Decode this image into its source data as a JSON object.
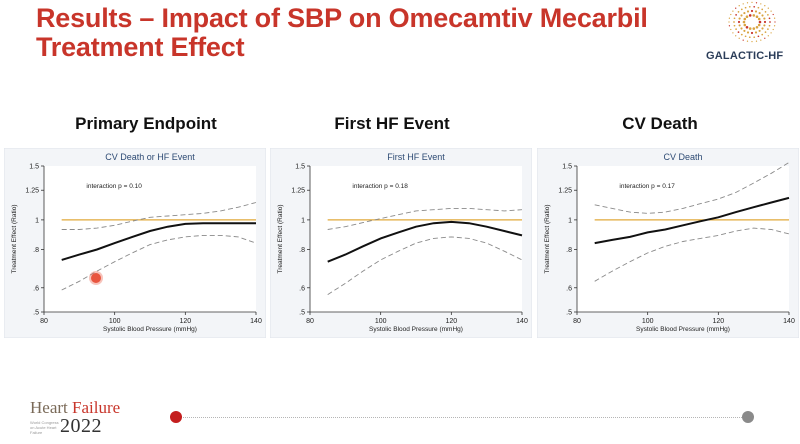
{
  "slide": {
    "title_line1": "Results – Impact of SBP on Omecamtiv Mecarbil",
    "title_line2": "Treatment Effect",
    "logo_text": "GALACTIC-HF",
    "footer": {
      "brand_word1": "Heart",
      "brand_word2": "Failure",
      "year": "2022",
      "subtitle": "World Congress on Acute Heart Failure"
    },
    "colors": {
      "title": "#c8352a",
      "reference_line": "#e0a83a",
      "timeline_active": "#c41e1e",
      "timeline_end": "#8a8a8a"
    }
  },
  "panels": [
    {
      "heading": "Primary Endpoint"
    },
    {
      "heading": "First HF Event"
    },
    {
      "heading": "CV Death"
    }
  ],
  "chart_data": [
    {
      "type": "line",
      "title": "CV Death or HF Event",
      "xlabel": "Systolic Blood Pressure (mmHg)",
      "ylabel": "Treatment Effect (Ratio)",
      "xlim": [
        80,
        140
      ],
      "xticks": [
        80,
        100,
        120,
        140
      ],
      "ylim": [
        0.5,
        1.5
      ],
      "yticks": [
        0.5,
        0.6,
        0.8,
        1,
        1.25,
        1.5
      ],
      "ytick_labels": [
        ".5",
        ".6",
        ".8",
        "1",
        "1.25",
        "1.5"
      ],
      "log_y": true,
      "annotation": "interaction p = 0.10",
      "reference_y": 1,
      "series": [
        {
          "role": "estimate",
          "x": [
            85,
            90,
            95,
            100,
            105,
            110,
            115,
            120,
            125,
            130,
            135,
            140
          ],
          "values": [
            0.74,
            0.77,
            0.8,
            0.84,
            0.88,
            0.92,
            0.95,
            0.97,
            0.975,
            0.975,
            0.975,
            0.975
          ]
        },
        {
          "role": "upper_ci",
          "x": [
            85,
            90,
            95,
            100,
            105,
            110,
            115,
            120,
            125,
            130,
            135,
            140
          ],
          "values": [
            0.93,
            0.93,
            0.94,
            0.96,
            0.99,
            1.02,
            1.03,
            1.04,
            1.05,
            1.07,
            1.1,
            1.14
          ]
        },
        {
          "role": "lower_ci",
          "x": [
            85,
            90,
            95,
            100,
            105,
            110,
            115,
            120,
            125,
            130,
            135,
            140
          ],
          "values": [
            0.59,
            0.63,
            0.68,
            0.73,
            0.78,
            0.83,
            0.86,
            0.88,
            0.89,
            0.89,
            0.88,
            0.84
          ]
        }
      ]
    },
    {
      "type": "line",
      "title": "First HF Event",
      "xlabel": "Systolic Blood Pressure (mmHg)",
      "ylabel": "Treatment Effect (Ratio)",
      "xlim": [
        80,
        140
      ],
      "xticks": [
        80,
        100,
        120,
        140
      ],
      "ylim": [
        0.5,
        1.5
      ],
      "yticks": [
        0.5,
        0.6,
        0.8,
        1,
        1.25,
        1.5
      ],
      "ytick_labels": [
        ".5",
        ".6",
        ".8",
        "1",
        "1.25",
        "1.5"
      ],
      "log_y": true,
      "annotation": "interaction p = 0.18",
      "reference_y": 1,
      "series": [
        {
          "role": "estimate",
          "x": [
            85,
            90,
            95,
            100,
            105,
            110,
            115,
            120,
            125,
            130,
            135,
            140
          ],
          "values": [
            0.73,
            0.77,
            0.82,
            0.87,
            0.91,
            0.95,
            0.975,
            0.985,
            0.975,
            0.95,
            0.92,
            0.89
          ]
        },
        {
          "role": "upper_ci",
          "x": [
            85,
            90,
            95,
            100,
            105,
            110,
            115,
            120,
            125,
            130,
            135,
            140
          ],
          "values": [
            0.93,
            0.95,
            0.98,
            1.01,
            1.04,
            1.07,
            1.08,
            1.09,
            1.09,
            1.08,
            1.07,
            1.08
          ]
        },
        {
          "role": "lower_ci",
          "x": [
            85,
            90,
            95,
            100,
            105,
            110,
            115,
            120,
            125,
            130,
            135,
            140
          ],
          "values": [
            0.57,
            0.62,
            0.68,
            0.74,
            0.79,
            0.84,
            0.87,
            0.88,
            0.87,
            0.84,
            0.79,
            0.74
          ]
        }
      ]
    },
    {
      "type": "line",
      "title": "CV Death",
      "xlabel": "Systolic Blood Pressure (mmHg)",
      "ylabel": "Treatment Effect (Ratio)",
      "xlim": [
        80,
        140
      ],
      "xticks": [
        80,
        100,
        120,
        140
      ],
      "ylim": [
        0.5,
        1.5
      ],
      "yticks": [
        0.5,
        0.6,
        0.8,
        1,
        1.25,
        1.5
      ],
      "ytick_labels": [
        ".5",
        ".6",
        ".8",
        "1",
        "1.25",
        "1.5"
      ],
      "log_y": true,
      "annotation": "interaction p = 0.17",
      "reference_y": 1,
      "series": [
        {
          "role": "estimate",
          "x": [
            85,
            90,
            95,
            100,
            105,
            110,
            115,
            120,
            125,
            130,
            135,
            140
          ],
          "values": [
            0.84,
            0.86,
            0.88,
            0.91,
            0.93,
            0.96,
            0.99,
            1.02,
            1.06,
            1.1,
            1.14,
            1.18
          ]
        },
        {
          "role": "upper_ci",
          "x": [
            85,
            90,
            95,
            100,
            105,
            110,
            115,
            120,
            125,
            130,
            135,
            140
          ],
          "values": [
            1.12,
            1.09,
            1.06,
            1.05,
            1.06,
            1.09,
            1.13,
            1.17,
            1.23,
            1.32,
            1.42,
            1.54
          ]
        },
        {
          "role": "lower_ci",
          "x": [
            85,
            90,
            95,
            100,
            105,
            110,
            115,
            120,
            125,
            130,
            135,
            140
          ],
          "values": [
            0.63,
            0.68,
            0.73,
            0.78,
            0.82,
            0.85,
            0.87,
            0.89,
            0.92,
            0.94,
            0.93,
            0.9
          ]
        }
      ]
    }
  ]
}
